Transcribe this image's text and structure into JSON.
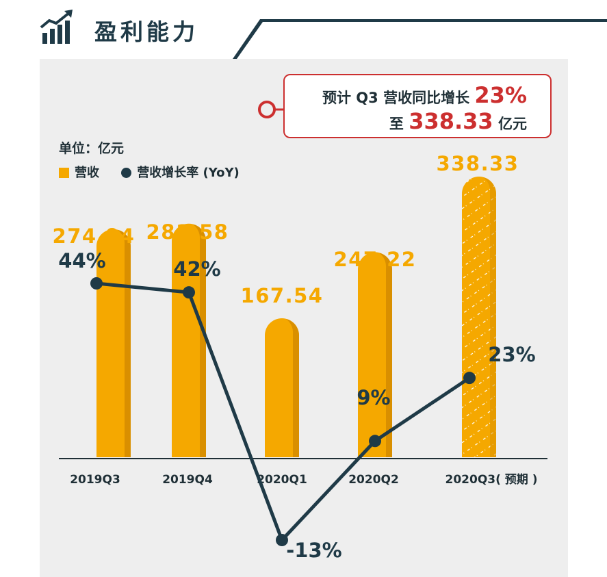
{
  "header": {
    "title": "盈利能力"
  },
  "callout": {
    "line1_prefix": "预计 Q3 营收同比增长 ",
    "line1_value": "23%",
    "line2_prefix": "至 ",
    "line2_value": "338.33",
    "line2_suffix": " 亿元"
  },
  "unit_label": "单位：亿元",
  "legend": {
    "bar_label": "营收",
    "line_label": "营收增长率 (YoY)"
  },
  "colors": {
    "bar": "#f5a800",
    "bar_shade": "#d98f00",
    "line": "#1f3a47",
    "accent": "#cc2f2f",
    "value_label": "#f5a800"
  },
  "chart_data": {
    "type": "bar",
    "categories": [
      "2019Q3",
      "2019Q4",
      "2020Q1",
      "2020Q2",
      "2020Q3( 预期 )"
    ],
    "series": [
      {
        "name": "营收",
        "type": "bar",
        "values": [
          274.94,
          281.58,
          167.54,
          247.22,
          338.33
        ],
        "labels": [
          "274.94",
          "281.58",
          "167.54",
          "247.22",
          "338.33"
        ],
        "projected": [
          false,
          false,
          false,
          false,
          true
        ]
      },
      {
        "name": "营收增长率 (YoY)",
        "type": "line",
        "values": [
          44,
          42,
          -13,
          9,
          23
        ],
        "labels": [
          "44%",
          "42%",
          "-13%",
          "9%",
          "23%"
        ]
      }
    ],
    "ylim_bar": [
      0,
      338.33
    ],
    "ylim_line": [
      -13,
      44
    ]
  }
}
